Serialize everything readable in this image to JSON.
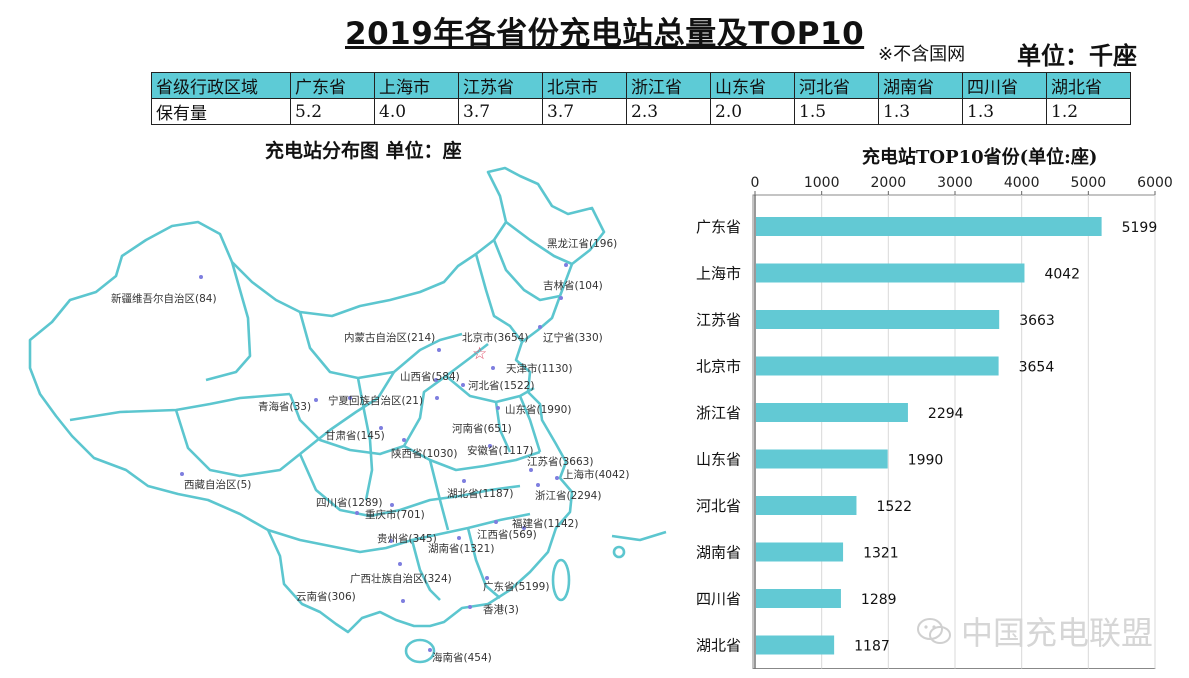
{
  "header": {
    "title": "2019年各省份充电站总量及TOP10",
    "note": "※不含国网",
    "unit": "单位：千座"
  },
  "summary_table": {
    "row_label": "省级行政区域",
    "value_label": "保有量",
    "provinces": [
      "广东省",
      "上海市",
      "江苏省",
      "北京市",
      "浙江省",
      "山东省",
      "河北省",
      "湖南省",
      "四川省",
      "湖北省"
    ],
    "values": [
      "5.2",
      "4.0",
      "3.7",
      "3.7",
      "2.3",
      "2.0",
      "1.5",
      "1.3",
      "1.3",
      "1.2"
    ]
  },
  "map": {
    "title": "充电站分布图   单位：座",
    "labels": [
      "黑龙江省(196)",
      "吉林省(104)",
      "辽宁省(330)",
      "新疆维吾尔自治区(84)",
      "内蒙古自治区(214)",
      "北京市(3654)",
      "天津市(1130)",
      "山西省(584)",
      "河北省(1522)",
      "山东省(1990)",
      "青海省(33)",
      "宁夏回族自治区(21)",
      "甘肃省(145)",
      "河南省(651)",
      "安徽省(1117)",
      "陕西省(1030)",
      "江苏省(3663)",
      "上海市(4042)",
      "西藏自治区(5)",
      "湖北省(1187)",
      "浙江省(2294)",
      "四川省(1289)",
      "重庆市(701)",
      "福建省(1142)",
      "江西省(569)",
      "贵州省(345)",
      "湖南省(1321)",
      "广西壮族自治区(324)",
      "广东省(5199)",
      "云南省(306)",
      "香港(3)",
      "海南省(454)"
    ]
  },
  "chart_data": {
    "type": "bar",
    "orientation": "horizontal",
    "title": "充电站TOP10省份(单位:座)",
    "categories": [
      "广东省",
      "上海市",
      "江苏省",
      "北京市",
      "浙江省",
      "山东省",
      "河北省",
      "湖南省",
      "四川省",
      "湖北省"
    ],
    "values": [
      5199,
      4042,
      3663,
      3654,
      2294,
      1990,
      1522,
      1321,
      1289,
      1187
    ],
    "xlim": [
      0,
      6000
    ],
    "ticks": [
      "0",
      "1000",
      "2000",
      "3000",
      "4000",
      "5000",
      "6000"
    ],
    "grid": true,
    "axis_position": "top",
    "bar_color": "#62c9d4"
  },
  "watermark": {
    "text": "中国充电联盟"
  }
}
